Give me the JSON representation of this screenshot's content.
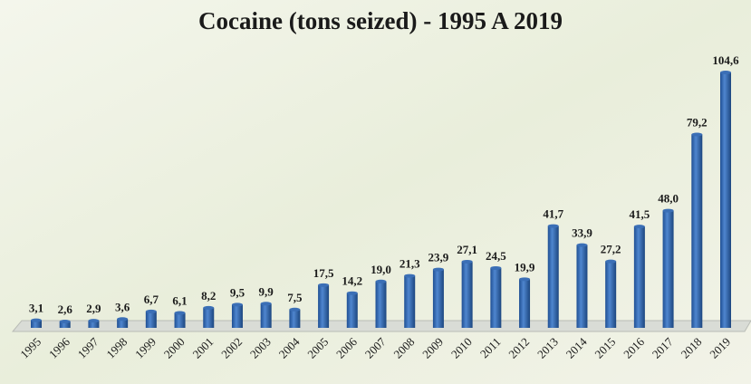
{
  "chart_data": {
    "type": "bar",
    "title": "Cocaine (tons seized)  - 1995 A 2019",
    "categories": [
      "1995",
      "1996",
      "1997",
      "1998",
      "1999",
      "2000",
      "2001",
      "2002",
      "2003",
      "2004",
      "2005",
      "2006",
      "2007",
      "2008",
      "2009",
      "2010",
      "2011",
      "2012",
      "2013",
      "2014",
      "2015",
      "2016",
      "2017",
      "2018",
      "2019"
    ],
    "values": [
      3.1,
      2.6,
      2.9,
      3.6,
      6.7,
      6.1,
      8.2,
      9.5,
      9.9,
      7.5,
      17.5,
      14.2,
      19.0,
      21.3,
      23.9,
      27.1,
      24.5,
      19.9,
      41.7,
      33.9,
      27.2,
      41.5,
      48.0,
      79.2,
      104.6
    ],
    "value_labels": [
      "3,1",
      "2,6",
      "2,9",
      "3,6",
      "6,7",
      "6,1",
      "8,2",
      "9,5",
      "9,9",
      "7,5",
      "17,5",
      "14,2",
      "19,0",
      "21,3",
      "23,9",
      "27,1",
      "24,5",
      "19,9",
      "41,7",
      "33,9",
      "27,2",
      "41,5",
      "48,0",
      "79,2",
      "104,6"
    ],
    "color": "#3b6fb6"
  }
}
